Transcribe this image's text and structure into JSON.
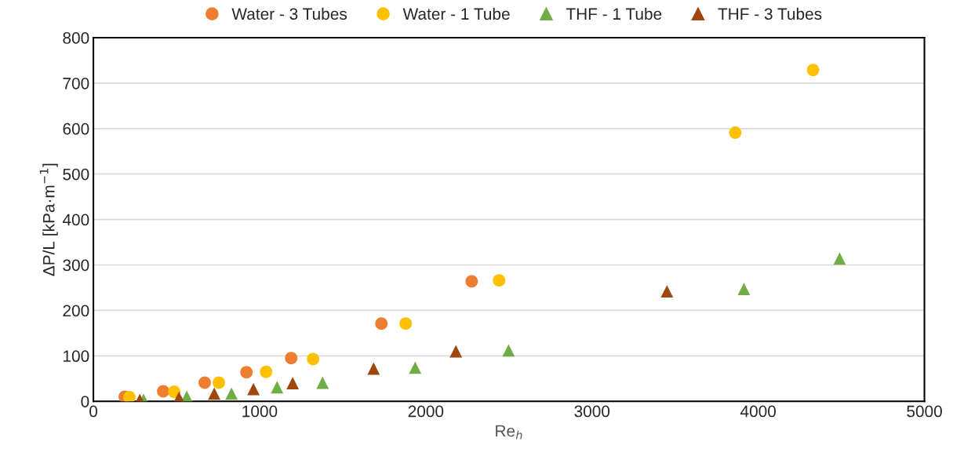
{
  "chart_data": {
    "type": "scatter",
    "xlabel": "Re$_{h}$",
    "ylabel": "ΔP/L [kPa·m$^{−1}$]",
    "xlim": [
      0,
      5000
    ],
    "xticks": [
      0,
      1000,
      2000,
      3000,
      4000,
      5000
    ],
    "ylim": [
      0,
      800
    ],
    "yticks": [
      0,
      100,
      200,
      300,
      400,
      500,
      600,
      700,
      800
    ],
    "grid": "y",
    "legend": "top",
    "series": [
      {
        "name": "Water - 3 Tubes",
        "color": "#ed7d31",
        "marker": "circle",
        "x": [
          189,
          420,
          670,
          921,
          1190,
          1733,
          2276
        ],
        "values": [
          10,
          22,
          41,
          64,
          95,
          171,
          264
        ]
      },
      {
        "name": "Water - 1 Tube",
        "color": "#ffc000",
        "marker": "circle",
        "x": [
          217,
          486,
          755,
          1039,
          1322,
          1879,
          2441,
          3862,
          4330
        ],
        "values": [
          9,
          21,
          41,
          65,
          93,
          171,
          266,
          591,
          729
        ]
      },
      {
        "name": "THF - 1 Tube",
        "color": "#70ad47",
        "marker": "triangle",
        "x": [
          302,
          562,
          831,
          1105,
          1379,
          1936,
          2498,
          3914,
          4490
        ],
        "values": [
          3,
          10,
          17,
          31,
          41,
          74,
          112,
          247,
          314
        ]
      },
      {
        "name": "THF - 3 Tubes",
        "color": "#9e480e",
        "marker": "triangle",
        "x": [
          279,
          515,
          727,
          963,
          1199,
          1686,
          2181,
          3451
        ],
        "values": [
          3,
          8,
          17,
          27,
          40,
          72,
          110,
          242
        ]
      }
    ]
  }
}
